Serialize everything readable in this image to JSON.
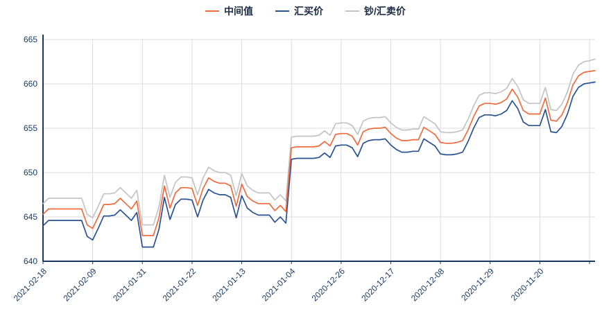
{
  "legend": {
    "position": "top-center"
  },
  "chart_data": {
    "type": "line",
    "title": "",
    "xlabel": "",
    "ylabel": "",
    "ylim": [
      640,
      665
    ],
    "y_ticks": [
      640,
      645,
      650,
      655,
      660,
      665
    ],
    "grid": true,
    "x_order": "newest-to-oldest",
    "x_tick_labels": [
      "2021-02-18",
      "2021-02-09",
      "2021-01-31",
      "2021-01-22",
      "2021-01-13",
      "2021-01-04",
      "2020-12-26",
      "2020-12-17",
      "2020-12-08",
      "2020-11-29",
      "2020-11-20"
    ],
    "x_tick_every": 9,
    "x": [
      "2021-02-18",
      "2021-02-17",
      "2021-02-16",
      "2021-02-15",
      "2021-02-14",
      "2021-02-13",
      "2021-02-12",
      "2021-02-11",
      "2021-02-10",
      "2021-02-09",
      "2021-02-08",
      "2021-02-07",
      "2021-02-06",
      "2021-02-05",
      "2021-02-04",
      "2021-02-03",
      "2021-02-02",
      "2021-02-01",
      "2021-01-31",
      "2021-01-30",
      "2021-01-29",
      "2021-01-28",
      "2021-01-27",
      "2021-01-26",
      "2021-01-25",
      "2021-01-24",
      "2021-01-23",
      "2021-01-22",
      "2021-01-21",
      "2021-01-20",
      "2021-01-19",
      "2021-01-18",
      "2021-01-17",
      "2021-01-16",
      "2021-01-15",
      "2021-01-14",
      "2021-01-13",
      "2021-01-12",
      "2021-01-11",
      "2021-01-10",
      "2021-01-09",
      "2021-01-08",
      "2021-01-07",
      "2021-01-06",
      "2021-01-05",
      "2021-01-04",
      "2021-01-03",
      "2021-01-02",
      "2021-01-01",
      "2020-12-31",
      "2020-12-30",
      "2020-12-29",
      "2020-12-28",
      "2020-12-27",
      "2020-12-26",
      "2020-12-25",
      "2020-12-24",
      "2020-12-23",
      "2020-12-22",
      "2020-12-21",
      "2020-12-20",
      "2020-12-19",
      "2020-12-18",
      "2020-12-17",
      "2020-12-16",
      "2020-12-15",
      "2020-12-14",
      "2020-12-13",
      "2020-12-12",
      "2020-12-11",
      "2020-12-10",
      "2020-12-09",
      "2020-12-08",
      "2020-12-07",
      "2020-12-06",
      "2020-12-05",
      "2020-12-04",
      "2020-12-03",
      "2020-12-02",
      "2020-12-01",
      "2020-11-30",
      "2020-11-29",
      "2020-11-28",
      "2020-11-27",
      "2020-11-26",
      "2020-11-25",
      "2020-11-24",
      "2020-11-23",
      "2020-11-22",
      "2020-11-21",
      "2020-11-20",
      "2020-11-19",
      "2020-11-18",
      "2020-11-17",
      "2020-11-16",
      "2020-11-15",
      "2020-11-14",
      "2020-11-13",
      "2020-11-12",
      "2020-11-11",
      "2020-11-10"
    ],
    "series": [
      {
        "id": "mid",
        "name": "中间值",
        "color": "#ef6b3d",
        "values": [
          645.3,
          645.9,
          645.9,
          645.9,
          645.9,
          645.9,
          645.9,
          645.9,
          644.1,
          643.7,
          645.0,
          646.4,
          646.4,
          646.5,
          647.1,
          646.5,
          645.9,
          646.8,
          642.9,
          642.9,
          642.9,
          644.9,
          648.5,
          646.0,
          647.7,
          648.3,
          648.3,
          648.2,
          646.3,
          648.2,
          649.4,
          649.0,
          648.8,
          648.8,
          648.5,
          646.2,
          648.7,
          647.3,
          646.8,
          646.5,
          646.5,
          646.5,
          645.7,
          646.3,
          645.6,
          652.8,
          652.9,
          652.9,
          652.9,
          652.9,
          653.0,
          653.5,
          653.0,
          654.3,
          654.4,
          654.4,
          654.1,
          653.1,
          654.6,
          654.9,
          655.0,
          655.0,
          655.1,
          654.4,
          653.9,
          653.6,
          653.6,
          653.7,
          653.7,
          655.1,
          654.7,
          654.3,
          653.4,
          653.3,
          653.3,
          653.4,
          653.6,
          654.8,
          656.3,
          657.5,
          657.8,
          657.8,
          657.7,
          657.9,
          658.3,
          659.4,
          658.5,
          657.0,
          656.6,
          656.6,
          656.6,
          658.4,
          655.9,
          655.8,
          656.5,
          657.9,
          659.9,
          660.9,
          661.3,
          661.4,
          661.5
        ]
      },
      {
        "id": "buy",
        "name": "汇买价",
        "color": "#2a5291",
        "values": [
          644.0,
          644.6,
          644.6,
          644.6,
          644.6,
          644.6,
          644.6,
          644.6,
          642.8,
          642.4,
          643.7,
          645.1,
          645.1,
          645.2,
          645.8,
          645.2,
          644.6,
          645.5,
          641.6,
          641.6,
          641.6,
          643.6,
          647.2,
          644.7,
          646.4,
          647.0,
          647.0,
          646.9,
          645.0,
          646.9,
          648.1,
          647.7,
          647.5,
          647.5,
          647.2,
          644.9,
          647.4,
          646.0,
          645.5,
          645.2,
          645.2,
          645.2,
          644.4,
          645.0,
          644.3,
          651.5,
          651.6,
          651.6,
          651.6,
          651.6,
          651.7,
          652.2,
          651.7,
          653.0,
          653.1,
          653.1,
          652.8,
          651.8,
          653.3,
          653.6,
          653.7,
          653.7,
          653.8,
          653.1,
          652.6,
          652.3,
          652.3,
          652.4,
          652.4,
          653.8,
          653.4,
          653.0,
          652.1,
          652.0,
          652.0,
          652.1,
          652.3,
          653.5,
          655.0,
          656.2,
          656.5,
          656.5,
          656.4,
          656.6,
          657.0,
          658.1,
          657.2,
          655.7,
          655.3,
          655.3,
          655.3,
          657.1,
          654.6,
          654.5,
          655.2,
          656.6,
          658.6,
          659.6,
          660.0,
          660.1,
          660.2
        ]
      },
      {
        "id": "sell",
        "name": "钞/汇卖价",
        "color": "#c2c4c6",
        "values": [
          646.5,
          647.1,
          647.1,
          647.1,
          647.1,
          647.1,
          647.1,
          647.1,
          645.3,
          644.9,
          646.2,
          647.6,
          647.6,
          647.7,
          648.3,
          647.7,
          647.1,
          648.0,
          644.1,
          644.1,
          644.1,
          646.1,
          649.7,
          647.2,
          648.9,
          649.5,
          649.5,
          649.4,
          647.5,
          649.4,
          650.6,
          650.2,
          650.0,
          650.0,
          649.7,
          647.4,
          649.9,
          648.5,
          648.0,
          647.7,
          647.7,
          647.7,
          646.9,
          647.5,
          646.8,
          654.0,
          654.1,
          654.1,
          654.1,
          654.1,
          654.2,
          654.7,
          654.2,
          655.5,
          655.6,
          655.6,
          655.3,
          654.3,
          655.8,
          656.1,
          656.2,
          656.2,
          656.3,
          655.6,
          655.1,
          654.8,
          654.8,
          654.9,
          654.9,
          656.3,
          655.9,
          655.5,
          654.6,
          654.5,
          654.5,
          654.6,
          654.8,
          656.0,
          657.5,
          658.7,
          659.0,
          659.0,
          658.9,
          659.1,
          659.5,
          660.6,
          659.7,
          658.2,
          657.8,
          657.8,
          657.8,
          659.6,
          657.1,
          657.0,
          657.7,
          659.1,
          661.1,
          662.1,
          662.5,
          662.6,
          662.8
        ]
      }
    ],
    "colors": {
      "axis": "#17375e",
      "gridline": "#dcdcdc",
      "background": "#ffffff"
    }
  }
}
